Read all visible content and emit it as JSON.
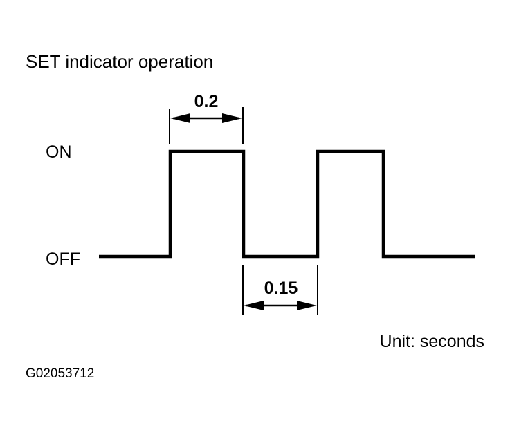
{
  "title": "SET indicator operation",
  "levels": {
    "on": "ON",
    "off": "OFF"
  },
  "dimensions": {
    "on_duration": "0.2",
    "off_duration": "0.15"
  },
  "unit_note": "Unit: seconds",
  "figure_id": "G02053712",
  "colors": {
    "line": "#000000",
    "background": "#ffffff"
  }
}
